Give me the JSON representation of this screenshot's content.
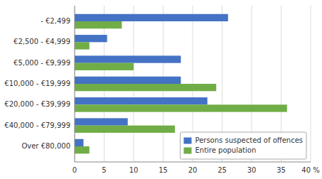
{
  "chart_data": {
    "type": "bar",
    "orientation": "horizontal",
    "categories": [
      "- €2,499",
      "€2,500 - €4,999",
      "€5,000 - €9,999",
      "€10,000 - €19,999",
      "€20,000 - €39,999",
      "€40,000 - €79,999",
      "Over €80,000"
    ],
    "series": [
      {
        "name": "Persons suspected of offences",
        "color": "#4472C4",
        "values": [
          26,
          5.5,
          18,
          18,
          22.5,
          9,
          1.5
        ]
      },
      {
        "name": "Entire population",
        "color": "#70AD47",
        "values": [
          8,
          2.5,
          10,
          24,
          36,
          17,
          2.5
        ]
      }
    ],
    "xlim": [
      0,
      40
    ],
    "xticks": [
      0,
      5,
      10,
      15,
      20,
      25,
      30,
      35,
      {
        "value": 40,
        "label": "40 %"
      }
    ],
    "grid": true,
    "legend": "lower right"
  }
}
